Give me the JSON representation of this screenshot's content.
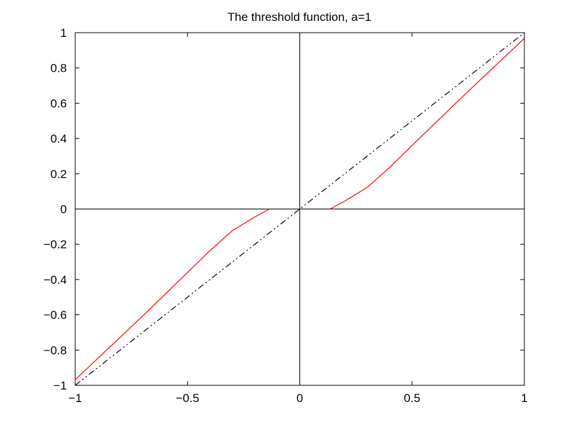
{
  "chart_data": {
    "type": "line",
    "title": "The threshold function, a=1",
    "xlabel": "",
    "ylabel": "",
    "xlim": [
      -1,
      1
    ],
    "ylim": [
      -1,
      1
    ],
    "x_ticks": [
      -1,
      -0.5,
      0,
      0.5,
      1
    ],
    "x_tick_labels": [
      "−1",
      "−0.5",
      "0",
      "0.5",
      "1"
    ],
    "y_ticks": [
      -1,
      -0.8,
      -0.6,
      -0.4,
      -0.2,
      0,
      0.2,
      0.4,
      0.6,
      0.8,
      1
    ],
    "y_tick_labels": [
      "−1",
      "−0.8",
      "−0.6",
      "−0.4",
      "−0.2",
      "0",
      "0.2",
      "0.4",
      "0.6",
      "0.8",
      "1"
    ],
    "grid": false,
    "reference_lines": [
      {
        "orientation": "horizontal",
        "value": 0,
        "color": "#000000"
      },
      {
        "orientation": "vertical",
        "value": 0,
        "color": "#000000"
      }
    ],
    "series": [
      {
        "style": "dash-dot",
        "color": "#000000",
        "x": [
          -1,
          1
        ],
        "y": [
          -1,
          1
        ]
      },
      {
        "style": "solid",
        "color": "#ff0000",
        "segments": [
          {
            "x": [
              -1.0,
              -0.9,
              -0.8,
              -0.7,
              -0.6,
              -0.5,
              -0.4,
              -0.3,
              -0.2,
              -0.135
            ],
            "y": [
              -0.968,
              -0.848,
              -0.728,
              -0.607,
              -0.484,
              -0.36,
              -0.236,
              -0.122,
              -0.045,
              0.0
            ]
          },
          {
            "x": [
              0.135,
              0.2,
              0.3,
              0.4,
              0.5,
              0.6,
              0.7,
              0.8,
              0.9,
              1.0
            ],
            "y": [
              0.0,
              0.045,
              0.122,
              0.236,
              0.36,
              0.484,
              0.607,
              0.728,
              0.848,
              0.968
            ]
          }
        ]
      }
    ]
  }
}
